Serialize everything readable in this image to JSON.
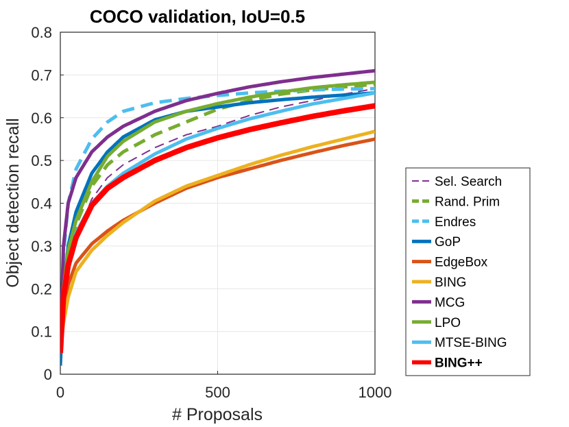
{
  "chart_data": {
    "type": "line",
    "title": "COCO validation, IoU=0.5",
    "xlabel": "# Proposals",
    "ylabel": "Object detection recall",
    "xlim": [
      0,
      1000
    ],
    "ylim": [
      0,
      0.8
    ],
    "xticks": [
      0,
      500,
      1000
    ],
    "xtick_labels": [
      "0",
      "500",
      "1000"
    ],
    "yticks": [
      0,
      0.1,
      0.2,
      0.3,
      0.4,
      0.5,
      0.6,
      0.7,
      0.8
    ],
    "ytick_labels": [
      "0",
      "0.1",
      "0.2",
      "0.3",
      "0.4",
      "0.5",
      "0.6",
      "0.7",
      "0.8"
    ],
    "grid": true,
    "legend_position": "outside-right",
    "x": [
      0,
      10,
      25,
      50,
      100,
      150,
      200,
      300,
      400,
      500,
      600,
      700,
      800,
      900,
      1000
    ],
    "series": [
      {
        "name": "Sel. Search",
        "color": "#7E2F8E",
        "style": "dashed",
        "width": "thin",
        "values": [
          0.05,
          0.17,
          0.25,
          0.32,
          0.41,
          0.46,
          0.49,
          0.53,
          0.56,
          0.58,
          0.605,
          0.625,
          0.64,
          0.655,
          0.668
        ]
      },
      {
        "name": "Rand. Prim",
        "color": "#77AC30",
        "style": "dashed",
        "width": "thick",
        "values": [
          0.05,
          0.18,
          0.27,
          0.35,
          0.44,
          0.49,
          0.52,
          0.56,
          0.59,
          0.62,
          0.64,
          0.655,
          0.665,
          0.672,
          0.678
        ]
      },
      {
        "name": "Endres",
        "color": "#4DBEEE",
        "style": "dashed",
        "width": "thick",
        "values": [
          0.03,
          0.28,
          0.4,
          0.48,
          0.55,
          0.59,
          0.615,
          0.635,
          0.645,
          0.652,
          0.658,
          0.662,
          0.665,
          0.667,
          0.668
        ]
      },
      {
        "name": "GoP",
        "color": "#0072BD",
        "style": "solid",
        "width": "thick",
        "values": [
          0.02,
          0.19,
          0.3,
          0.38,
          0.47,
          0.52,
          0.555,
          0.595,
          0.615,
          0.625,
          0.635,
          0.642,
          0.648,
          0.653,
          0.658
        ]
      },
      {
        "name": "EdgeBox",
        "color": "#D95319",
        "style": "solid",
        "width": "thick",
        "values": [
          0.06,
          0.15,
          0.21,
          0.26,
          0.305,
          0.335,
          0.36,
          0.4,
          0.435,
          0.46,
          0.48,
          0.5,
          0.518,
          0.535,
          0.55
        ]
      },
      {
        "name": "BING",
        "color": "#EDB120",
        "style": "solid",
        "width": "thick",
        "values": [
          0.06,
          0.12,
          0.18,
          0.24,
          0.29,
          0.325,
          0.355,
          0.405,
          0.44,
          0.465,
          0.49,
          0.512,
          0.532,
          0.55,
          0.568
        ]
      },
      {
        "name": "MCG",
        "color": "#7E2F8E",
        "style": "solid",
        "width": "thick",
        "values": [
          0.05,
          0.3,
          0.4,
          0.46,
          0.52,
          0.555,
          0.58,
          0.615,
          0.64,
          0.657,
          0.672,
          0.684,
          0.694,
          0.702,
          0.71
        ]
      },
      {
        "name": "LPO",
        "color": "#77AC30",
        "style": "solid",
        "width": "thick",
        "values": [
          0.05,
          0.2,
          0.29,
          0.36,
          0.45,
          0.51,
          0.545,
          0.59,
          0.615,
          0.633,
          0.648,
          0.66,
          0.67,
          0.677,
          0.683
        ]
      },
      {
        "name": "MTSE-BING",
        "color": "#4DBEEE",
        "style": "solid",
        "width": "thick",
        "values": [
          0.05,
          0.18,
          0.26,
          0.33,
          0.4,
          0.44,
          0.47,
          0.515,
          0.55,
          0.575,
          0.597,
          0.615,
          0.632,
          0.645,
          0.658
        ]
      },
      {
        "name": "BING++",
        "color": "#FF0000",
        "style": "solid",
        "width": "extra",
        "bold_label": true,
        "values": [
          0.05,
          0.18,
          0.255,
          0.32,
          0.395,
          0.435,
          0.46,
          0.5,
          0.53,
          0.553,
          0.572,
          0.588,
          0.603,
          0.616,
          0.628
        ]
      }
    ]
  }
}
